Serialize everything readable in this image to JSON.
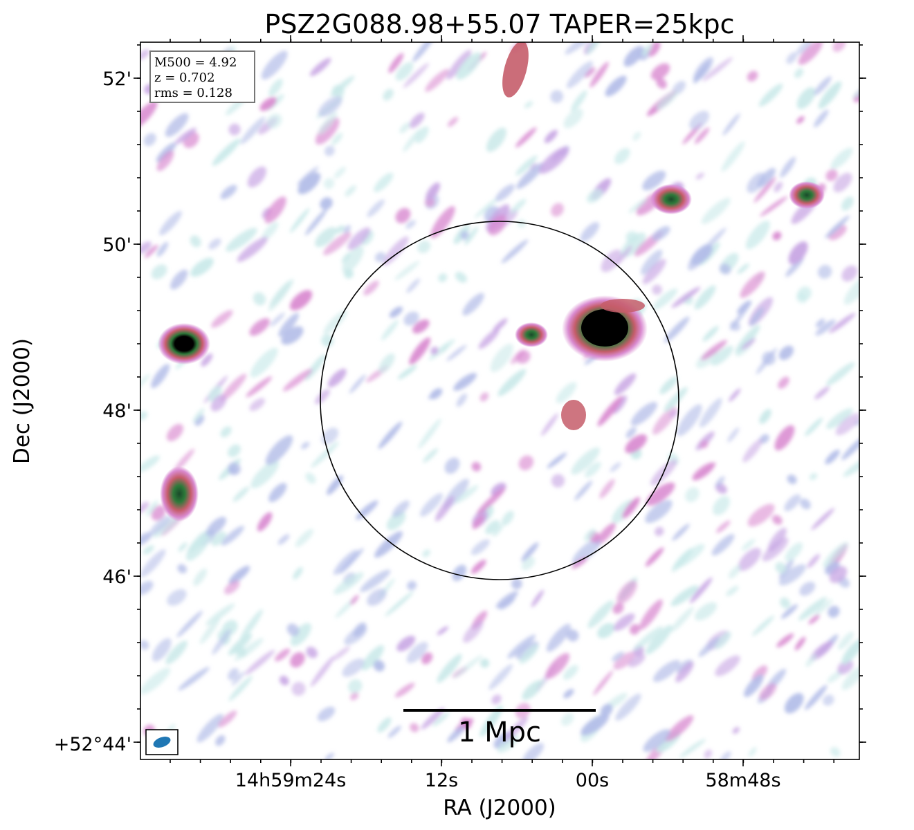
{
  "figure": {
    "title": "PSZ2G088.98+55.07 TAPER=25kpc",
    "xlabel": "RA (J2000)",
    "ylabel": "Dec (J2000)",
    "ra_ticks": [
      "14h59m24s",
      "12s",
      "00s",
      "58m48s"
    ],
    "dec_ticks": [
      "52'",
      "50'",
      "48'",
      "46'",
      "+52°44'"
    ],
    "info": {
      "m500": "M500 = 4.92",
      "z": "z = 0.702",
      "rms": "rms = 0.128"
    },
    "scalebar_label": "1 Mpc",
    "beam_color": "#1f77b4",
    "colormap": [
      "#ffffff",
      "#c9e9e9",
      "#b3bde8",
      "#d98ad0",
      "#c55d6a",
      "#2e7a3a",
      "#000000"
    ]
  }
}
